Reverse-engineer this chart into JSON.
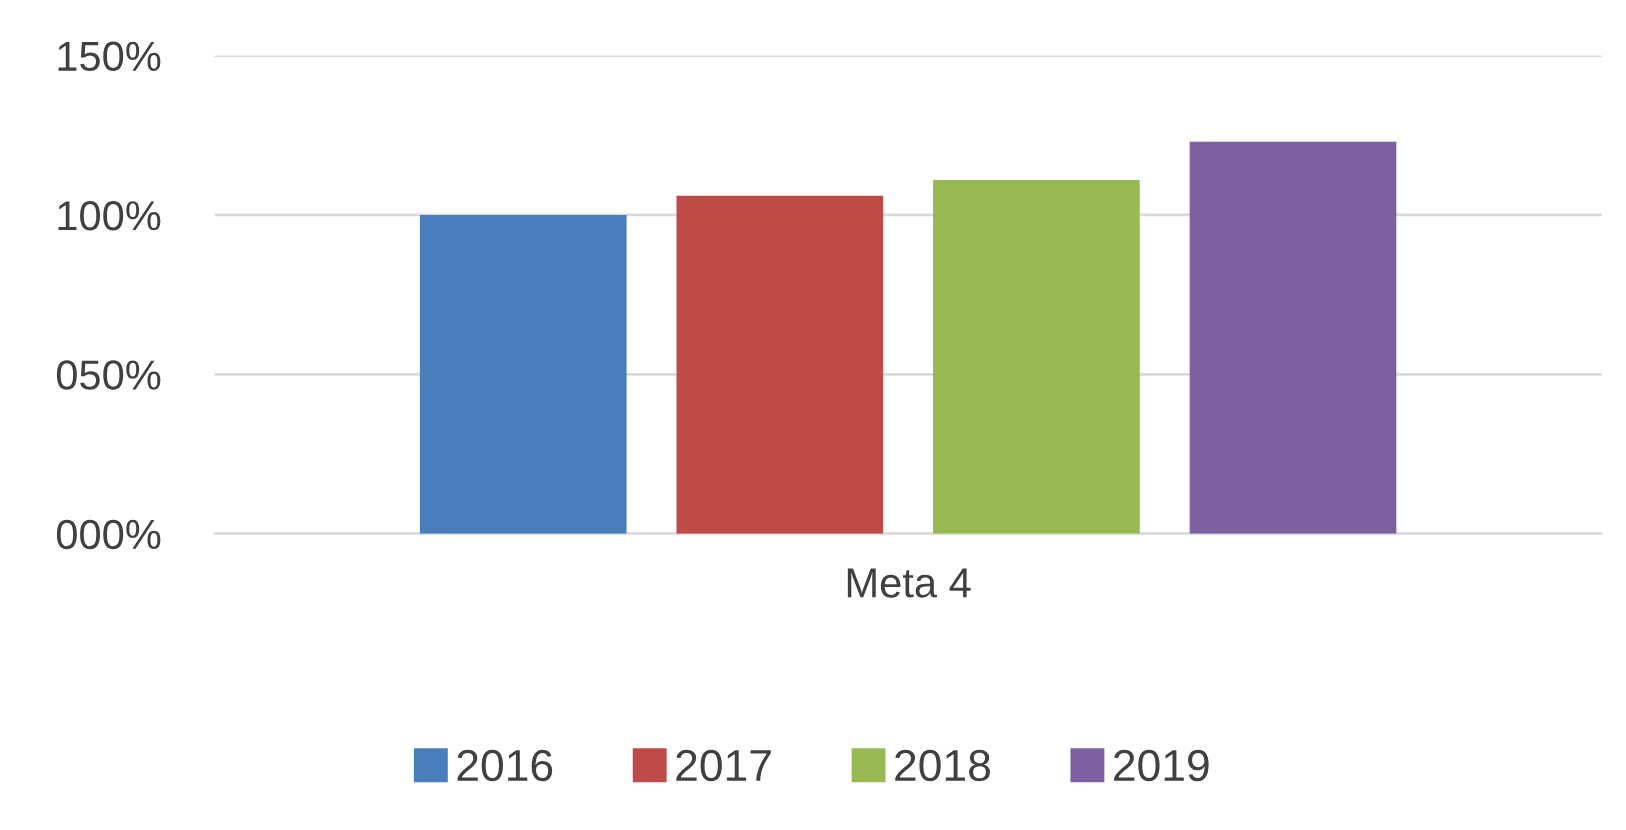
{
  "chart_data": {
    "type": "bar",
    "categories": [
      "Meta 4"
    ],
    "series": [
      {
        "name": "2016",
        "color": "#4a7ebb",
        "values": [
          100
        ]
      },
      {
        "name": "2017",
        "color": "#be4b48",
        "values": [
          106
        ]
      },
      {
        "name": "2018",
        "color": "#98b954",
        "values": [
          111
        ]
      },
      {
        "name": "2019",
        "color": "#7d60a0",
        "values": [
          123
        ]
      }
    ],
    "ylim": [
      0,
      150
    ],
    "yticks": [
      {
        "value": 0,
        "label": "000%"
      },
      {
        "value": 50,
        "label": "050%"
      },
      {
        "value": 100,
        "label": "100%"
      },
      {
        "value": 150,
        "label": "150%"
      }
    ],
    "grid": "y",
    "legend": "bottom"
  }
}
